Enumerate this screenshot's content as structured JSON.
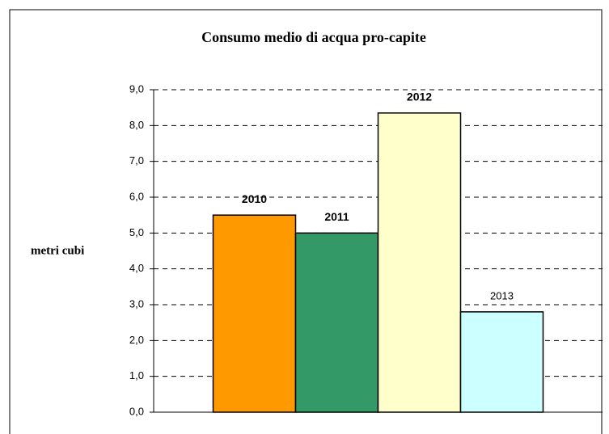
{
  "chart_data": {
    "type": "bar",
    "title": "Consumo medio di acqua pro-capite",
    "y_label": "metri cubi",
    "categories": [
      "2010",
      "2011",
      "2012",
      "2013"
    ],
    "values": [
      5.5,
      5.0,
      8.35,
      2.8
    ],
    "colors": [
      "#ff9900",
      "#339966",
      "#ffffcc",
      "#ccffff"
    ],
    "ylim": [
      0,
      9
    ],
    "yticks": [
      {
        "value": 0,
        "label": "0,0"
      },
      {
        "value": 1,
        "label": "1,0"
      },
      {
        "value": 2,
        "label": "2,0"
      },
      {
        "value": 3,
        "label": "3,0"
      },
      {
        "value": 4,
        "label": "4,0"
      },
      {
        "value": 5,
        "label": "5,0"
      },
      {
        "value": 6,
        "label": "6,0"
      },
      {
        "value": 7,
        "label": "7,0"
      },
      {
        "value": 8,
        "label": "8,0"
      },
      {
        "value": 9,
        "label": "9,0"
      }
    ],
    "grid": true
  }
}
